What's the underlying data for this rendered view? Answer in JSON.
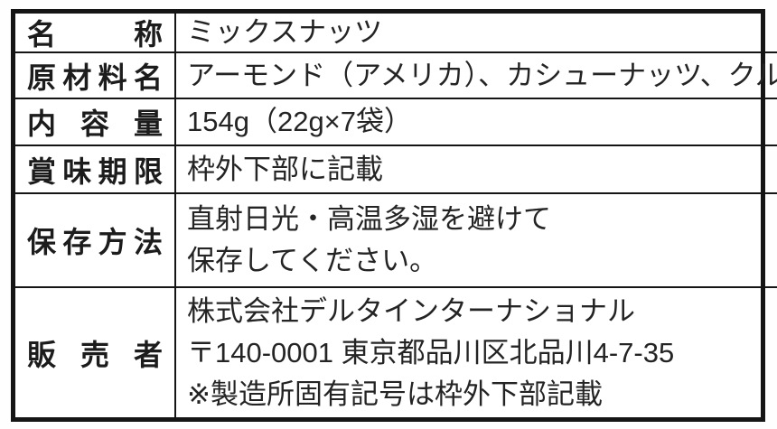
{
  "label_table": {
    "colors": {
      "border": "#151515",
      "text": "#1c1c1c",
      "background": "#ffffff"
    },
    "rows": [
      {
        "label": "名称",
        "lines": [
          "ミックスナッツ"
        ]
      },
      {
        "label": "原材料名",
        "lines": [
          "アーモンド（アメリカ）、カシューナッツ、クルミ"
        ]
      },
      {
        "label": "内容量",
        "lines": [
          "154g（22g×7袋）"
        ]
      },
      {
        "label": "賞味期限",
        "lines": [
          "枠外下部に記載"
        ]
      },
      {
        "label": "保存方法",
        "lines": [
          "直射日光・高温多湿を避けて",
          "保存してください。"
        ]
      },
      {
        "label": "販売者",
        "lines": [
          "株式会社デルタインターナショナル",
          "〒140-0001 東京都品川区北品川4-7-35",
          "※製造所固有記号は枠外下部記載"
        ]
      }
    ]
  }
}
